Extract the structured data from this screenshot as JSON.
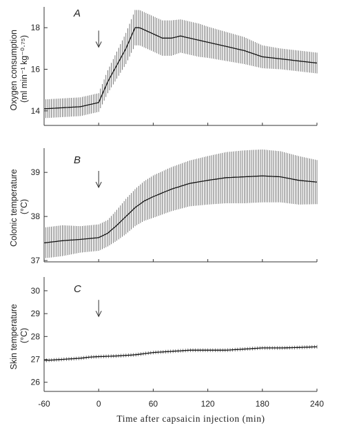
{
  "xlabel": "Time after capsaicin injection (min)",
  "x_ticks": [
    "-60",
    "0",
    "60",
    "120",
    "180",
    "240"
  ],
  "chart_data": [
    {
      "type": "line",
      "panel": "A",
      "ylabel_lines": [
        "Oxygen consumption",
        "(ml min⁻¹ kg⁻⁰·⁷⁵)"
      ],
      "xlim": [
        -60,
        240
      ],
      "ylim": [
        13.3,
        19.0
      ],
      "yticks": [
        14,
        16,
        18
      ],
      "arrow_x": 0,
      "series": [
        {
          "x": [
            -60,
            -40,
            -20,
            -10,
            0,
            5,
            10,
            15,
            20,
            25,
            30,
            35,
            40,
            45,
            50,
            60,
            70,
            80,
            90,
            100,
            110,
            120,
            140,
            160,
            180,
            200,
            220,
            240
          ],
          "y": [
            14.1,
            14.15,
            14.2,
            14.3,
            14.4,
            14.9,
            15.4,
            15.8,
            16.2,
            16.6,
            17.0,
            17.5,
            18.0,
            18.0,
            17.9,
            17.7,
            17.5,
            17.5,
            17.6,
            17.5,
            17.4,
            17.3,
            17.1,
            16.9,
            16.6,
            16.5,
            16.4,
            16.3
          ],
          "err": [
            0.45,
            0.45,
            0.45,
            0.45,
            0.45,
            0.5,
            0.55,
            0.6,
            0.65,
            0.7,
            0.75,
            0.8,
            0.85,
            0.85,
            0.85,
            0.85,
            0.85,
            0.85,
            0.8,
            0.8,
            0.8,
            0.75,
            0.7,
            0.65,
            0.55,
            0.5,
            0.5,
            0.5
          ]
        }
      ]
    },
    {
      "type": "line",
      "panel": "B",
      "ylabel_lines": [
        "Colonic temperature",
        "(°C)"
      ],
      "xlim": [
        -60,
        240
      ],
      "ylim": [
        36.97,
        39.55
      ],
      "yticks": [
        37,
        38,
        39
      ],
      "arrow_x": 0,
      "series": [
        {
          "x": [
            -60,
            -40,
            -20,
            -10,
            0,
            10,
            20,
            30,
            40,
            50,
            60,
            80,
            100,
            120,
            140,
            160,
            180,
            200,
            220,
            240
          ],
          "y": [
            37.4,
            37.45,
            37.48,
            37.5,
            37.52,
            37.62,
            37.8,
            38.0,
            38.2,
            38.35,
            38.45,
            38.62,
            38.75,
            38.82,
            38.88,
            38.9,
            38.92,
            38.9,
            38.82,
            38.78
          ],
          "err": [
            0.35,
            0.35,
            0.3,
            0.3,
            0.3,
            0.3,
            0.35,
            0.4,
            0.42,
            0.45,
            0.48,
            0.5,
            0.52,
            0.55,
            0.58,
            0.6,
            0.6,
            0.58,
            0.55,
            0.5
          ]
        }
      ]
    },
    {
      "type": "line",
      "panel": "C",
      "ylabel_lines": [
        "Skin temperature",
        "(°C)"
      ],
      "xlim": [
        -60,
        240
      ],
      "ylim": [
        25.6,
        30.6
      ],
      "yticks": [
        26,
        27,
        28,
        29,
        30
      ],
      "arrow_x": 0,
      "series": [
        {
          "x": [
            -60,
            -40,
            -20,
            -10,
            0,
            20,
            40,
            60,
            80,
            100,
            120,
            140,
            160,
            180,
            200,
            220,
            240
          ],
          "y": [
            26.95,
            27.0,
            27.05,
            27.1,
            27.12,
            27.15,
            27.2,
            27.3,
            27.35,
            27.4,
            27.4,
            27.4,
            27.45,
            27.5,
            27.5,
            27.52,
            27.55
          ],
          "err": [
            0.08,
            0.08,
            0.08,
            0.08,
            0.08,
            0.08,
            0.08,
            0.08,
            0.08,
            0.08,
            0.08,
            0.08,
            0.08,
            0.08,
            0.08,
            0.08,
            0.08
          ]
        }
      ]
    }
  ]
}
